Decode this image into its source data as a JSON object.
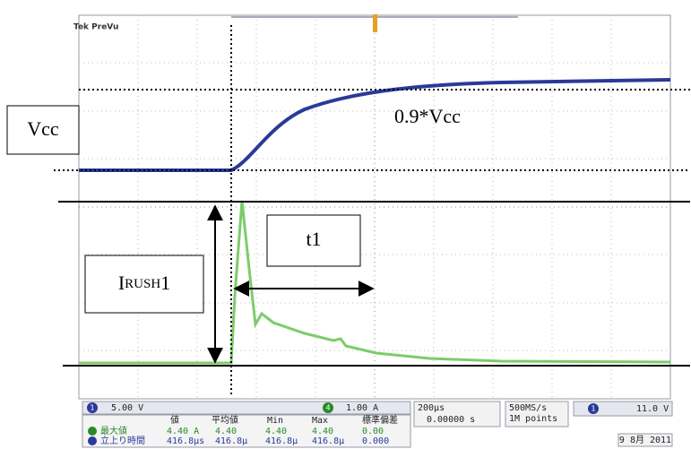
{
  "header": {
    "brand": "Tek PreVu"
  },
  "annotations": {
    "vcc": "Vcc",
    "threshold": "0.9*Vcc",
    "t1": "t1",
    "irush": {
      "main": "I",
      "sub": "RUSH",
      "index": "1"
    }
  },
  "status": {
    "ch1": {
      "num": "1",
      "scale": "5.00 V"
    },
    "ch4": {
      "num": "4",
      "scale": "1.00 A"
    },
    "timebase": "200µs",
    "position": "0.00000 s",
    "sample_rate": "500MS/s",
    "record_length": "1M points",
    "trigger": {
      "num": "1",
      "level": "11.0 V"
    },
    "date": "9 8月 2011"
  },
  "measurements": {
    "headers": [
      "値",
      "平均値",
      "Min",
      "Max",
      "標準偏差"
    ],
    "rows": [
      [
        "最大値",
        "4.40 A",
        "4.40",
        "4.40",
        "4.40",
        "0.00"
      ],
      [
        "立上り時間",
        "416.8µs",
        "416.8µ",
        "416.8µ",
        "416.8µ",
        "0.000"
      ]
    ]
  }
}
